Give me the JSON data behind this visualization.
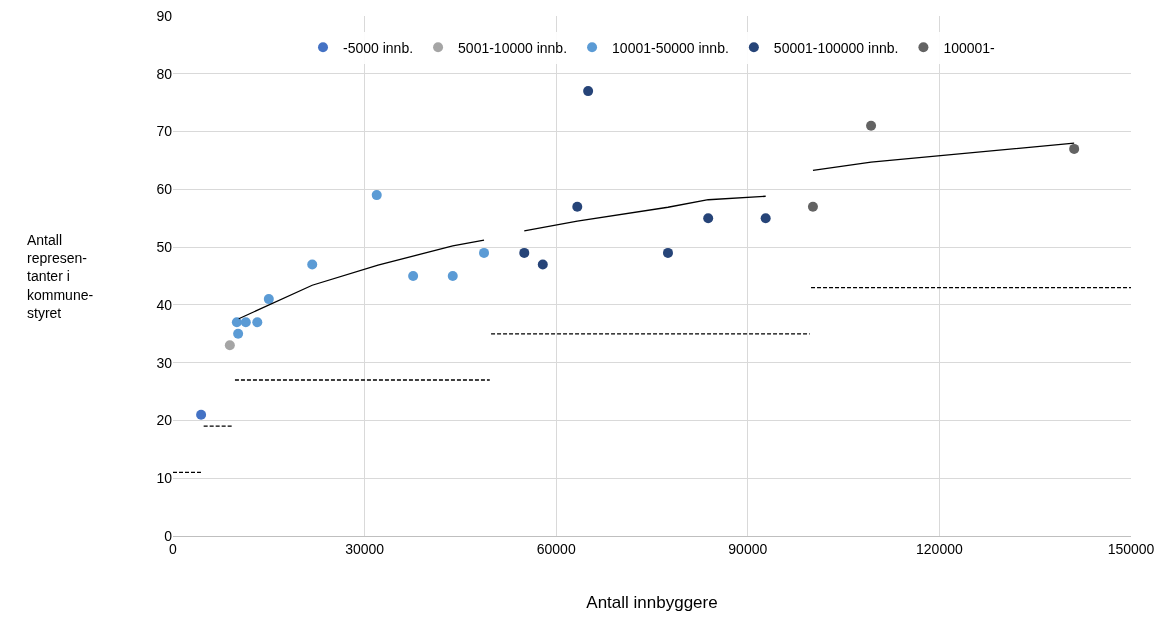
{
  "chart_data": {
    "type": "scatter",
    "xlabel": "Antall innbyggere",
    "ylabel": "Antall\nrepresen-\ntanter i\nkommune-\nstyret",
    "xlim": [
      0,
      150000
    ],
    "xticks": [
      0,
      30000,
      60000,
      90000,
      120000,
      150000
    ],
    "ylim": [
      0,
      90
    ],
    "yticks": [
      0,
      10,
      20,
      30,
      40,
      50,
      60,
      70,
      80,
      90
    ],
    "grid": true,
    "legend": "top",
    "marker": "circle",
    "series": [
      {
        "name": "-5000 innb.",
        "color": "#4472c4",
        "x": [
          4400
        ],
        "values": [
          21
        ]
      },
      {
        "name": "5001-10000 innb.",
        "color": "#a5a5a5",
        "x": [
          8900
        ],
        "values": [
          33
        ]
      },
      {
        "name": "10001-50000 innb.",
        "color": "#5b9bd5",
        "x": [
          10000,
          10200,
          11400,
          13200,
          15000,
          21800,
          31900,
          37600,
          43800,
          48700
        ],
        "values": [
          37,
          35,
          37,
          37,
          41,
          47,
          59,
          45,
          45,
          49
        ]
      },
      {
        "name": "50001-100000 innb.",
        "color": "#264478",
        "x": [
          55000,
          57900,
          63300,
          65000,
          77500,
          83800,
          92800
        ],
        "values": [
          49,
          47,
          57,
          77,
          49,
          55,
          55
        ]
      },
      {
        "name": "100001-",
        "color": "#636363",
        "x": [
          100200,
          109300,
          141100
        ],
        "values": [
          57,
          71,
          67
        ]
      },
      {
        "type": "line",
        "color": "#000000",
        "marker": "none",
        "line_style": "solid",
        "x": [
          10300,
          21800,
          32100,
          43800,
          48700
        ],
        "values": [
          37.6,
          43.4,
          46.9,
          50.2,
          51.2
        ]
      },
      {
        "type": "line",
        "color": "#000000",
        "marker": "none",
        "line_style": "solid",
        "x": [
          55000,
          63300,
          77500,
          83800,
          92800
        ],
        "values": [
          52.8,
          54.5,
          56.9,
          58.2,
          58.8
        ]
      },
      {
        "type": "line",
        "color": "#000000",
        "marker": "none",
        "line_style": "solid",
        "x": [
          100200,
          109300,
          141100
        ],
        "values": [
          63.3,
          64.7,
          68.0
        ]
      },
      {
        "type": "line",
        "color": "#000000",
        "marker": "none",
        "line_style": "dashed",
        "x": [
          0,
          4400
        ],
        "values": [
          11,
          11
        ]
      },
      {
        "type": "line",
        "color": "#000000",
        "marker": "none",
        "line_style": "dashed",
        "x": [
          4800,
          9200
        ],
        "values": [
          19,
          19
        ]
      },
      {
        "type": "line",
        "color": "#000000",
        "marker": "none",
        "line_style": "dashed",
        "x": [
          9700,
          49600
        ],
        "values": [
          27,
          27
        ]
      },
      {
        "type": "line",
        "color": "#000000",
        "marker": "none",
        "line_style": "dashed",
        "x": [
          49800,
          99700
        ],
        "values": [
          35,
          35
        ]
      },
      {
        "type": "line",
        "color": "#000000",
        "marker": "none",
        "line_style": "dashed",
        "x": [
          99900,
          150000
        ],
        "values": [
          43,
          43
        ]
      }
    ]
  }
}
